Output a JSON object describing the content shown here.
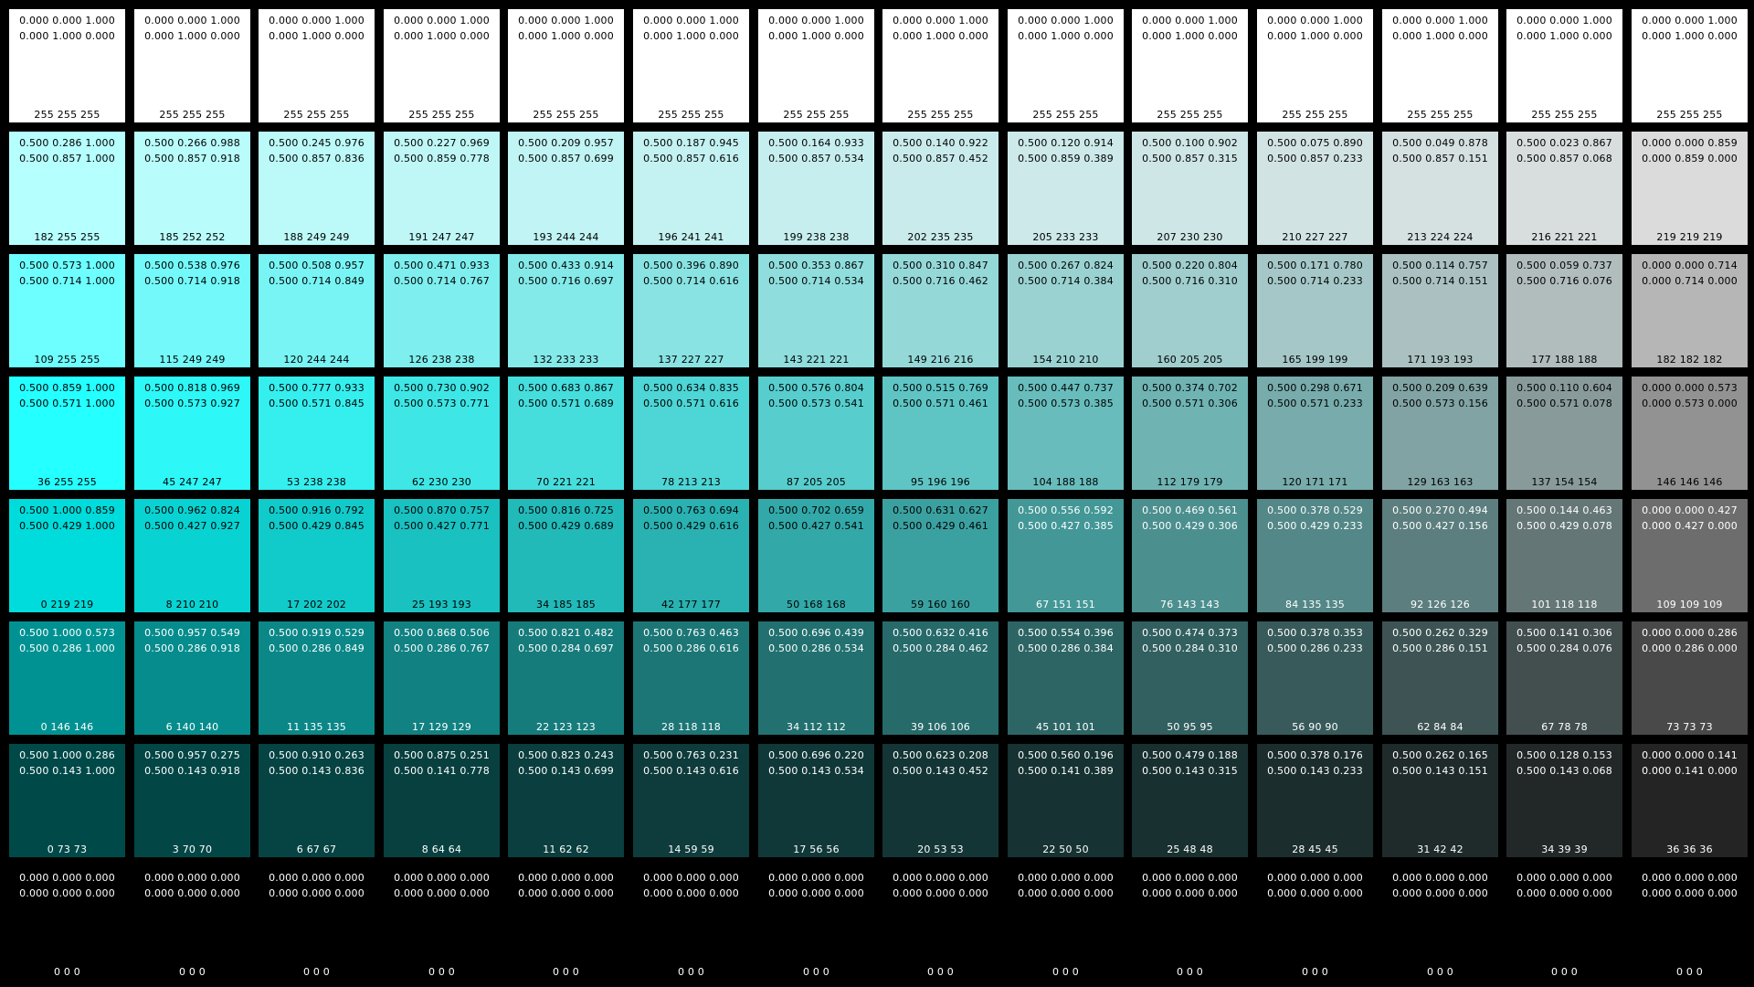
{
  "rows": [
    [
      {
        "hsv": "0.000 0.000 1.000",
        "hsl": "0.000 1.000 0.000",
        "rgb": "255 255 255"
      },
      {
        "hsv": "0.000 0.000 1.000",
        "hsl": "0.000 1.000 0.000",
        "rgb": "255 255 255"
      },
      {
        "hsv": "0.000 0.000 1.000",
        "hsl": "0.000 1.000 0.000",
        "rgb": "255 255 255"
      },
      {
        "hsv": "0.000 0.000 1.000",
        "hsl": "0.000 1.000 0.000",
        "rgb": "255 255 255"
      },
      {
        "hsv": "0.000 0.000 1.000",
        "hsl": "0.000 1.000 0.000",
        "rgb": "255 255 255"
      },
      {
        "hsv": "0.000 0.000 1.000",
        "hsl": "0.000 1.000 0.000",
        "rgb": "255 255 255"
      },
      {
        "hsv": "0.000 0.000 1.000",
        "hsl": "0.000 1.000 0.000",
        "rgb": "255 255 255"
      },
      {
        "hsv": "0.000 0.000 1.000",
        "hsl": "0.000 1.000 0.000",
        "rgb": "255 255 255"
      },
      {
        "hsv": "0.000 0.000 1.000",
        "hsl": "0.000 1.000 0.000",
        "rgb": "255 255 255"
      },
      {
        "hsv": "0.000 0.000 1.000",
        "hsl": "0.000 1.000 0.000",
        "rgb": "255 255 255"
      },
      {
        "hsv": "0.000 0.000 1.000",
        "hsl": "0.000 1.000 0.000",
        "rgb": "255 255 255"
      },
      {
        "hsv": "0.000 0.000 1.000",
        "hsl": "0.000 1.000 0.000",
        "rgb": "255 255 255"
      },
      {
        "hsv": "0.000 0.000 1.000",
        "hsl": "0.000 1.000 0.000",
        "rgb": "255 255 255"
      },
      {
        "hsv": "0.000 0.000 1.000",
        "hsl": "0.000 1.000 0.000",
        "rgb": "255 255 255"
      }
    ],
    [
      {
        "hsv": "0.500 0.286 1.000",
        "hsl": "0.500 0.857 1.000",
        "rgb": "182 255 255"
      },
      {
        "hsv": "0.500 0.266 0.988",
        "hsl": "0.500 0.857 0.918",
        "rgb": "185 252 252"
      },
      {
        "hsv": "0.500 0.245 0.976",
        "hsl": "0.500 0.857 0.836",
        "rgb": "188 249 249"
      },
      {
        "hsv": "0.500 0.227 0.969",
        "hsl": "0.500 0.859 0.778",
        "rgb": "191 247 247"
      },
      {
        "hsv": "0.500 0.209 0.957",
        "hsl": "0.500 0.857 0.699",
        "rgb": "193 244 244"
      },
      {
        "hsv": "0.500 0.187 0.945",
        "hsl": "0.500 0.857 0.616",
        "rgb": "196 241 241"
      },
      {
        "hsv": "0.500 0.164 0.933",
        "hsl": "0.500 0.857 0.534",
        "rgb": "199 238 238"
      },
      {
        "hsv": "0.500 0.140 0.922",
        "hsl": "0.500 0.857 0.452",
        "rgb": "202 235 235"
      },
      {
        "hsv": "0.500 0.120 0.914",
        "hsl": "0.500 0.859 0.389",
        "rgb": "205 233 233"
      },
      {
        "hsv": "0.500 0.100 0.902",
        "hsl": "0.500 0.857 0.315",
        "rgb": "207 230 230"
      },
      {
        "hsv": "0.500 0.075 0.890",
        "hsl": "0.500 0.857 0.233",
        "rgb": "210 227 227"
      },
      {
        "hsv": "0.500 0.049 0.878",
        "hsl": "0.500 0.857 0.151",
        "rgb": "213 224 224"
      },
      {
        "hsv": "0.500 0.023 0.867",
        "hsl": "0.500 0.857 0.068",
        "rgb": "216 221 221"
      },
      {
        "hsv": "0.000 0.000 0.859",
        "hsl": "0.000 0.859 0.000",
        "rgb": "219 219 219"
      }
    ],
    [
      {
        "hsv": "0.500 0.573 1.000",
        "hsl": "0.500 0.714 1.000",
        "rgb": "109 255 255"
      },
      {
        "hsv": "0.500 0.538 0.976",
        "hsl": "0.500 0.714 0.918",
        "rgb": "115 249 249"
      },
      {
        "hsv": "0.500 0.508 0.957",
        "hsl": "0.500 0.714 0.849",
        "rgb": "120 244 244"
      },
      {
        "hsv": "0.500 0.471 0.933",
        "hsl": "0.500 0.714 0.767",
        "rgb": "126 238 238"
      },
      {
        "hsv": "0.500 0.433 0.914",
        "hsl": "0.500 0.716 0.697",
        "rgb": "132 233 233"
      },
      {
        "hsv": "0.500 0.396 0.890",
        "hsl": "0.500 0.714 0.616",
        "rgb": "137 227 227"
      },
      {
        "hsv": "0.500 0.353 0.867",
        "hsl": "0.500 0.714 0.534",
        "rgb": "143 221 221"
      },
      {
        "hsv": "0.500 0.310 0.847",
        "hsl": "0.500 0.716 0.462",
        "rgb": "149 216 216"
      },
      {
        "hsv": "0.500 0.267 0.824",
        "hsl": "0.500 0.714 0.384",
        "rgb": "154 210 210"
      },
      {
        "hsv": "0.500 0.220 0.804",
        "hsl": "0.500 0.716 0.310",
        "rgb": "160 205 205"
      },
      {
        "hsv": "0.500 0.171 0.780",
        "hsl": "0.500 0.714 0.233",
        "rgb": "165 199 199"
      },
      {
        "hsv": "0.500 0.114 0.757",
        "hsl": "0.500 0.714 0.151",
        "rgb": "171 193 193"
      },
      {
        "hsv": "0.500 0.059 0.737",
        "hsl": "0.500 0.716 0.076",
        "rgb": "177 188 188"
      },
      {
        "hsv": "0.000 0.000 0.714",
        "hsl": "0.000 0.714 0.000",
        "rgb": "182 182 182"
      }
    ],
    [
      {
        "hsv": "0.500 0.859 1.000",
        "hsl": "0.500 0.571 1.000",
        "rgb": "36 255 255"
      },
      {
        "hsv": "0.500 0.818 0.969",
        "hsl": "0.500 0.573 0.927",
        "rgb": "45 247 247"
      },
      {
        "hsv": "0.500 0.777 0.933",
        "hsl": "0.500 0.571 0.845",
        "rgb": "53 238 238"
      },
      {
        "hsv": "0.500 0.730 0.902",
        "hsl": "0.500 0.573 0.771",
        "rgb": "62 230 230"
      },
      {
        "hsv": "0.500 0.683 0.867",
        "hsl": "0.500 0.571 0.689",
        "rgb": "70 221 221"
      },
      {
        "hsv": "0.500 0.634 0.835",
        "hsl": "0.500 0.571 0.616",
        "rgb": "78 213 213"
      },
      {
        "hsv": "0.500 0.576 0.804",
        "hsl": "0.500 0.573 0.541",
        "rgb": "87 205 205"
      },
      {
        "hsv": "0.500 0.515 0.769",
        "hsl": "0.500 0.571 0.461",
        "rgb": "95 196 196"
      },
      {
        "hsv": "0.500 0.447 0.737",
        "hsl": "0.500 0.573 0.385",
        "rgb": "104 188 188"
      },
      {
        "hsv": "0.500 0.374 0.702",
        "hsl": "0.500 0.571 0.306",
        "rgb": "112 179 179"
      },
      {
        "hsv": "0.500 0.298 0.671",
        "hsl": "0.500 0.571 0.233",
        "rgb": "120 171 171"
      },
      {
        "hsv": "0.500 0.209 0.639",
        "hsl": "0.500 0.573 0.156",
        "rgb": "129 163 163"
      },
      {
        "hsv": "0.500 0.110 0.604",
        "hsl": "0.500 0.571 0.078",
        "rgb": "137 154 154"
      },
      {
        "hsv": "0.000 0.000 0.573",
        "hsl": "0.000 0.573 0.000",
        "rgb": "146 146 146"
      }
    ],
    [
      {
        "hsv": "0.500 1.000 0.859",
        "hsl": "0.500 0.429 1.000",
        "rgb": "0 219 219"
      },
      {
        "hsv": "0.500 0.962 0.824",
        "hsl": "0.500 0.427 0.927",
        "rgb": "8 210 210"
      },
      {
        "hsv": "0.500 0.916 0.792",
        "hsl": "0.500 0.429 0.845",
        "rgb": "17 202 202"
      },
      {
        "hsv": "0.500 0.870 0.757",
        "hsl": "0.500 0.427 0.771",
        "rgb": "25 193 193"
      },
      {
        "hsv": "0.500 0.816 0.725",
        "hsl": "0.500 0.429 0.689",
        "rgb": "34 185 185"
      },
      {
        "hsv": "0.500 0.763 0.694",
        "hsl": "0.500 0.429 0.616",
        "rgb": "42 177 177"
      },
      {
        "hsv": "0.500 0.702 0.659",
        "hsl": "0.500 0.427 0.541",
        "rgb": "50 168 168"
      },
      {
        "hsv": "0.500 0.631 0.627",
        "hsl": "0.500 0.429 0.461",
        "rgb": "59 160 160"
      },
      {
        "hsv": "0.500 0.556 0.592",
        "hsl": "0.500 0.427 0.385",
        "rgb": "67 151 151"
      },
      {
        "hsv": "0.500 0.469 0.561",
        "hsl": "0.500 0.429 0.306",
        "rgb": "76 143 143"
      },
      {
        "hsv": "0.500 0.378 0.529",
        "hsl": "0.500 0.429 0.233",
        "rgb": "84 135 135"
      },
      {
        "hsv": "0.500 0.270 0.494",
        "hsl": "0.500 0.427 0.156",
        "rgb": "92 126 126"
      },
      {
        "hsv": "0.500 0.144 0.463",
        "hsl": "0.500 0.429 0.078",
        "rgb": "101 118 118"
      },
      {
        "hsv": "0.000 0.000 0.427",
        "hsl": "0.000 0.427 0.000",
        "rgb": "109 109 109"
      }
    ],
    [
      {
        "hsv": "0.500 1.000 0.573",
        "hsl": "0.500 0.286 1.000",
        "rgb": "0 146 146"
      },
      {
        "hsv": "0.500 0.957 0.549",
        "hsl": "0.500 0.286 0.918",
        "rgb": "6 140 140"
      },
      {
        "hsv": "0.500 0.919 0.529",
        "hsl": "0.500 0.286 0.849",
        "rgb": "11 135 135"
      },
      {
        "hsv": "0.500 0.868 0.506",
        "hsl": "0.500 0.286 0.767",
        "rgb": "17 129 129"
      },
      {
        "hsv": "0.500 0.821 0.482",
        "hsl": "0.500 0.284 0.697",
        "rgb": "22 123 123"
      },
      {
        "hsv": "0.500 0.763 0.463",
        "hsl": "0.500 0.286 0.616",
        "rgb": "28 118 118"
      },
      {
        "hsv": "0.500 0.696 0.439",
        "hsl": "0.500 0.286 0.534",
        "rgb": "34 112 112"
      },
      {
        "hsv": "0.500 0.632 0.416",
        "hsl": "0.500 0.284 0.462",
        "rgb": "39 106 106"
      },
      {
        "hsv": "0.500 0.554 0.396",
        "hsl": "0.500 0.286 0.384",
        "rgb": "45 101 101"
      },
      {
        "hsv": "0.500 0.474 0.373",
        "hsl": "0.500 0.284 0.310",
        "rgb": "50 95 95"
      },
      {
        "hsv": "0.500 0.378 0.353",
        "hsl": "0.500 0.286 0.233",
        "rgb": "56 90 90"
      },
      {
        "hsv": "0.500 0.262 0.329",
        "hsl": "0.500 0.286 0.151",
        "rgb": "62 84 84"
      },
      {
        "hsv": "0.500 0.141 0.306",
        "hsl": "0.500 0.284 0.076",
        "rgb": "67 78 78"
      },
      {
        "hsv": "0.000 0.000 0.286",
        "hsl": "0.000 0.286 0.000",
        "rgb": "73 73 73"
      }
    ],
    [
      {
        "hsv": "0.500 1.000 0.286",
        "hsl": "0.500 0.143 1.000",
        "rgb": "0 73 73"
      },
      {
        "hsv": "0.500 0.957 0.275",
        "hsl": "0.500 0.143 0.918",
        "rgb": "3 70 70"
      },
      {
        "hsv": "0.500 0.910 0.263",
        "hsl": "0.500 0.143 0.836",
        "rgb": "6 67 67"
      },
      {
        "hsv": "0.500 0.875 0.251",
        "hsl": "0.500 0.141 0.778",
        "rgb": "8 64 64"
      },
      {
        "hsv": "0.500 0.823 0.243",
        "hsl": "0.500 0.143 0.699",
        "rgb": "11 62 62"
      },
      {
        "hsv": "0.500 0.763 0.231",
        "hsl": "0.500 0.143 0.616",
        "rgb": "14 59 59"
      },
      {
        "hsv": "0.500 0.696 0.220",
        "hsl": "0.500 0.143 0.534",
        "rgb": "17 56 56"
      },
      {
        "hsv": "0.500 0.623 0.208",
        "hsl": "0.500 0.143 0.452",
        "rgb": "20 53 53"
      },
      {
        "hsv": "0.500 0.560 0.196",
        "hsl": "0.500 0.141 0.389",
        "rgb": "22 50 50"
      },
      {
        "hsv": "0.500 0.479 0.188",
        "hsl": "0.500 0.143 0.315",
        "rgb": "25 48 48"
      },
      {
        "hsv": "0.500 0.378 0.176",
        "hsl": "0.500 0.143 0.233",
        "rgb": "28 45 45"
      },
      {
        "hsv": "0.500 0.262 0.165",
        "hsl": "0.500 0.143 0.151",
        "rgb": "31 42 42"
      },
      {
        "hsv": "0.500 0.128 0.153",
        "hsl": "0.500 0.143 0.068",
        "rgb": "34 39 39"
      },
      {
        "hsv": "0.000 0.000 0.141",
        "hsl": "0.000 0.141 0.000",
        "rgb": "36 36 36"
      }
    ],
    [
      {
        "hsv": "0.000 0.000 0.000",
        "hsl": "0.000 0.000 0.000",
        "rgb": "0 0 0"
      },
      {
        "hsv": "0.000 0.000 0.000",
        "hsl": "0.000 0.000 0.000",
        "rgb": "0 0 0"
      },
      {
        "hsv": "0.000 0.000 0.000",
        "hsl": "0.000 0.000 0.000",
        "rgb": "0 0 0"
      },
      {
        "hsv": "0.000 0.000 0.000",
        "hsl": "0.000 0.000 0.000",
        "rgb": "0 0 0"
      },
      {
        "hsv": "0.000 0.000 0.000",
        "hsl": "0.000 0.000 0.000",
        "rgb": "0 0 0"
      },
      {
        "hsv": "0.000 0.000 0.000",
        "hsl": "0.000 0.000 0.000",
        "rgb": "0 0 0"
      },
      {
        "hsv": "0.000 0.000 0.000",
        "hsl": "0.000 0.000 0.000",
        "rgb": "0 0 0"
      },
      {
        "hsv": "0.000 0.000 0.000",
        "hsl": "0.000 0.000 0.000",
        "rgb": "0 0 0"
      },
      {
        "hsv": "0.000 0.000 0.000",
        "hsl": "0.000 0.000 0.000",
        "rgb": "0 0 0"
      },
      {
        "hsv": "0.000 0.000 0.000",
        "hsl": "0.000 0.000 0.000",
        "rgb": "0 0 0"
      },
      {
        "hsv": "0.000 0.000 0.000",
        "hsl": "0.000 0.000 0.000",
        "rgb": "0 0 0"
      },
      {
        "hsv": "0.000 0.000 0.000",
        "hsl": "0.000 0.000 0.000",
        "rgb": "0 0 0"
      },
      {
        "hsv": "0.000 0.000 0.000",
        "hsl": "0.000 0.000 0.000",
        "rgb": "0 0 0"
      },
      {
        "hsv": "0.000 0.000 0.000",
        "hsl": "0.000 0.000 0.000",
        "rgb": "0 0 0"
      }
    ]
  ]
}
